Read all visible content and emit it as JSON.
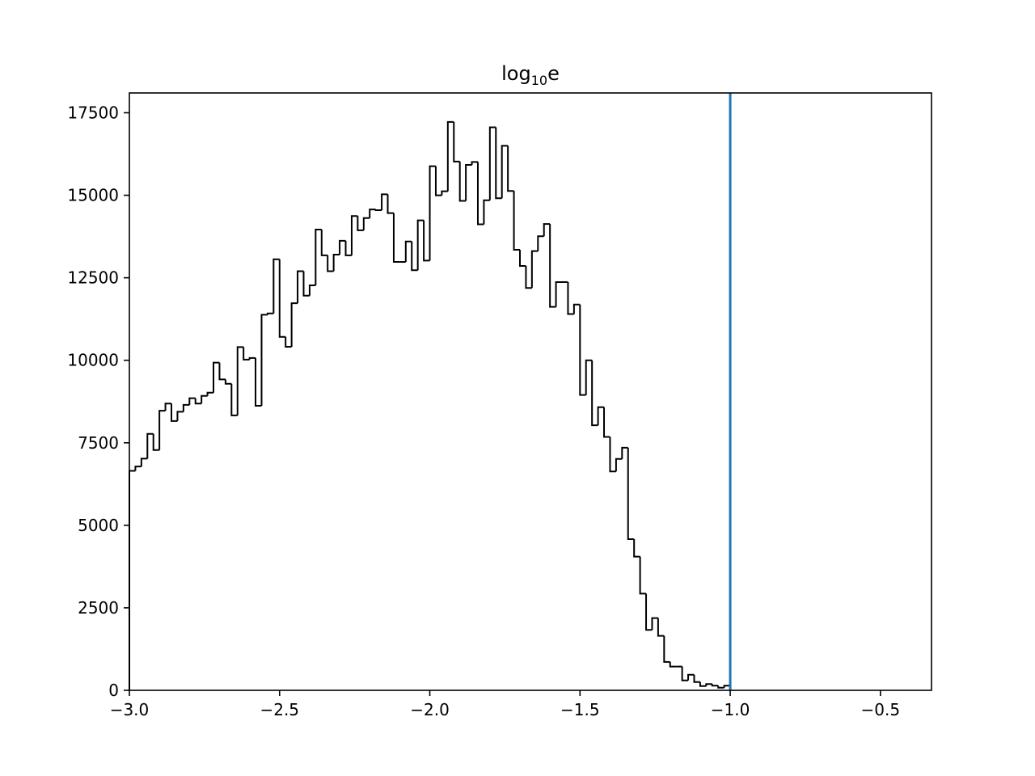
{
  "chart_data": {
    "type": "histogram",
    "title": "log₁₀e",
    "title_base": "log",
    "title_sub": "10",
    "title_tail": "e",
    "xlabel": "",
    "ylabel": "",
    "xlim": [
      -3.0,
      -0.33
    ],
    "ylim": [
      0,
      18100
    ],
    "xticks": [
      -3.0,
      -2.5,
      -2.0,
      -1.5,
      -1.0,
      -0.5
    ],
    "xtick_labels": [
      "−3.0",
      "−2.5",
      "−2.0",
      "−1.5",
      "−1.0",
      "−0.5"
    ],
    "yticks": [
      0,
      2500,
      5000,
      7500,
      10000,
      12500,
      15000,
      17500
    ],
    "ytick_labels": [
      "0",
      "2500",
      "5000",
      "7500",
      "10000",
      "12500",
      "15000",
      "17500"
    ],
    "grid": false,
    "bin_start": -3.0,
    "bin_width": 0.02,
    "counts": [
      6650,
      6780,
      7020,
      7770,
      7280,
      8470,
      8690,
      8160,
      8440,
      8650,
      8850,
      8690,
      8920,
      9020,
      9930,
      9420,
      9290,
      8330,
      10400,
      10020,
      10070,
      8620,
      11380,
      11420,
      13060,
      10710,
      10410,
      11730,
      12700,
      11960,
      12270,
      13960,
      13180,
      12700,
      13200,
      13620,
      13180,
      14370,
      13940,
      14310,
      14570,
      14550,
      15030,
      14460,
      12980,
      12980,
      13600,
      12730,
      14240,
      13020,
      15880,
      15000,
      15120,
      17220,
      16020,
      14830,
      15920,
      16010,
      14120,
      14850,
      17060,
      14910,
      16500,
      15130,
      13350,
      12860,
      12190,
      13310,
      13760,
      14130,
      11620,
      12370,
      12370,
      11400,
      11690,
      8950,
      10000,
      8030,
      8580,
      7680,
      6630,
      7010,
      7350,
      4580,
      4050,
      2930,
      1830,
      2190,
      1650,
      860,
      720,
      720,
      300,
      470,
      250,
      130,
      190,
      140,
      80,
      140
    ],
    "vline": {
      "x": -1.0,
      "color": "#1f77b4"
    },
    "step_color": "#000000"
  }
}
